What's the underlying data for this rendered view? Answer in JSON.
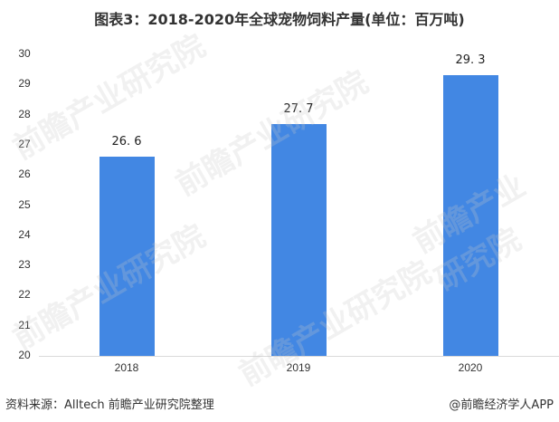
{
  "title": "图表3：2018-2020年全球宠物饲料产量(单位：百万吨)",
  "chart_data": {
    "type": "bar",
    "title": "图表3：2018-2020年全球宠物饲料产量(单位：百万吨)",
    "categories": [
      "2018",
      "2019",
      "2020"
    ],
    "values": [
      26.6,
      27.7,
      29.3
    ],
    "value_labels": [
      "26. 6",
      "27. 7",
      "29. 3"
    ],
    "xlabel": "",
    "ylabel": "",
    "ylim": [
      20,
      30
    ],
    "yticks": [
      20,
      21,
      22,
      23,
      24,
      25,
      26,
      27,
      28,
      29,
      30
    ],
    "grid": false,
    "legend": null,
    "bar_color": "#4287e3"
  },
  "footer": {
    "source": "资料来源：Alltech 前瞻产业研究院整理",
    "credit": "@前瞻经济学人APP"
  },
  "watermark": "前瞻产业研究院"
}
